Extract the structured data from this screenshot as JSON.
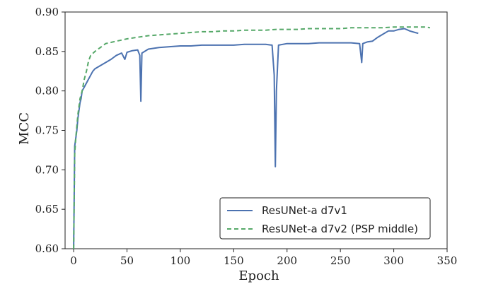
{
  "chart_data": {
    "type": "line",
    "title": "",
    "xlabel": "Epoch",
    "ylabel": "MCC",
    "xlim": [
      -8,
      350
    ],
    "ylim": [
      0.6,
      0.9
    ],
    "x_ticks": [
      0,
      50,
      100,
      150,
      200,
      250,
      300,
      350
    ],
    "y_ticks": [
      0.6,
      0.65,
      0.7,
      0.75,
      0.8,
      0.85,
      0.9
    ],
    "x_tick_labels": [
      "0",
      "50",
      "100",
      "150",
      "200",
      "250",
      "300",
      "350"
    ],
    "y_tick_labels": [
      "0.60",
      "0.65",
      "0.70",
      "0.75",
      "0.80",
      "0.85",
      "0.90"
    ],
    "grid": false,
    "legend_position": "bottom-right",
    "series": [
      {
        "name": "ResUNet-a d7v1",
        "color": "#4c72b0",
        "style": "solid",
        "points": [
          [
            0,
            0.6
          ],
          [
            1,
            0.73
          ],
          [
            2,
            0.74
          ],
          [
            3,
            0.75
          ],
          [
            4,
            0.765
          ],
          [
            5,
            0.775
          ],
          [
            6,
            0.785
          ],
          [
            7,
            0.79
          ],
          [
            8,
            0.8
          ],
          [
            10,
            0.805
          ],
          [
            12,
            0.81
          ],
          [
            14,
            0.815
          ],
          [
            16,
            0.82
          ],
          [
            18,
            0.825
          ],
          [
            20,
            0.828
          ],
          [
            25,
            0.832
          ],
          [
            30,
            0.836
          ],
          [
            35,
            0.84
          ],
          [
            40,
            0.845
          ],
          [
            45,
            0.848
          ],
          [
            48,
            0.84
          ],
          [
            50,
            0.849
          ],
          [
            55,
            0.851
          ],
          [
            60,
            0.852
          ],
          [
            62,
            0.845
          ],
          [
            63,
            0.787
          ],
          [
            64,
            0.848
          ],
          [
            70,
            0.853
          ],
          [
            75,
            0.854
          ],
          [
            80,
            0.855
          ],
          [
            90,
            0.856
          ],
          [
            100,
            0.857
          ],
          [
            110,
            0.857
          ],
          [
            120,
            0.858
          ],
          [
            130,
            0.858
          ],
          [
            140,
            0.858
          ],
          [
            150,
            0.858
          ],
          [
            160,
            0.859
          ],
          [
            170,
            0.859
          ],
          [
            180,
            0.859
          ],
          [
            186,
            0.858
          ],
          [
            188,
            0.82
          ],
          [
            189,
            0.704
          ],
          [
            190,
            0.8
          ],
          [
            192,
            0.858
          ],
          [
            200,
            0.86
          ],
          [
            210,
            0.86
          ],
          [
            220,
            0.86
          ],
          [
            230,
            0.861
          ],
          [
            240,
            0.861
          ],
          [
            250,
            0.861
          ],
          [
            260,
            0.861
          ],
          [
            268,
            0.86
          ],
          [
            270,
            0.836
          ],
          [
            271,
            0.86
          ],
          [
            275,
            0.862
          ],
          [
            280,
            0.863
          ],
          [
            285,
            0.868
          ],
          [
            290,
            0.872
          ],
          [
            295,
            0.876
          ],
          [
            300,
            0.876
          ],
          [
            305,
            0.878
          ],
          [
            310,
            0.879
          ],
          [
            315,
            0.876
          ],
          [
            320,
            0.874
          ],
          [
            323,
            0.873
          ]
        ]
      },
      {
        "name": "ResUNet-a d7v2 (PSP middle)",
        "color": "#55a868",
        "style": "dashed",
        "points": [
          [
            0,
            0.6
          ],
          [
            1,
            0.72
          ],
          [
            2,
            0.74
          ],
          [
            3,
            0.755
          ],
          [
            4,
            0.77
          ],
          [
            5,
            0.78
          ],
          [
            6,
            0.79
          ],
          [
            8,
            0.8
          ],
          [
            10,
            0.815
          ],
          [
            12,
            0.825
          ],
          [
            14,
            0.838
          ],
          [
            16,
            0.845
          ],
          [
            20,
            0.85
          ],
          [
            25,
            0.855
          ],
          [
            30,
            0.86
          ],
          [
            40,
            0.863
          ],
          [
            50,
            0.866
          ],
          [
            60,
            0.868
          ],
          [
            70,
            0.87
          ],
          [
            80,
            0.871
          ],
          [
            90,
            0.872
          ],
          [
            100,
            0.873
          ],
          [
            110,
            0.874
          ],
          [
            120,
            0.875
          ],
          [
            130,
            0.875
          ],
          [
            140,
            0.876
          ],
          [
            150,
            0.876
          ],
          [
            160,
            0.877
          ],
          [
            170,
            0.877
          ],
          [
            180,
            0.877
          ],
          [
            190,
            0.878
          ],
          [
            200,
            0.878
          ],
          [
            210,
            0.878
          ],
          [
            220,
            0.879
          ],
          [
            230,
            0.879
          ],
          [
            240,
            0.879
          ],
          [
            250,
            0.879
          ],
          [
            260,
            0.88
          ],
          [
            270,
            0.88
          ],
          [
            280,
            0.88
          ],
          [
            290,
            0.88
          ],
          [
            300,
            0.881
          ],
          [
            310,
            0.881
          ],
          [
            320,
            0.881
          ],
          [
            330,
            0.881
          ],
          [
            334,
            0.88
          ]
        ]
      }
    ]
  }
}
